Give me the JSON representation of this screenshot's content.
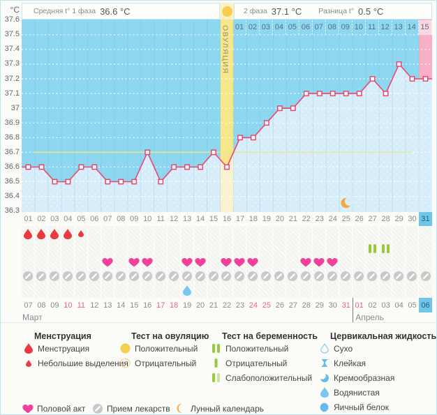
{
  "header": {
    "unit_label": "°C",
    "phase1_label": "Средняя t° 1 фаза",
    "phase1_value": "36.6 °C",
    "phase2_label": "2 фаза",
    "phase2_value": "37.1 °C",
    "diff_label": "Разница t°",
    "diff_value": "0.5 °C",
    "ovulation_test_result": "positive"
  },
  "chart_data": {
    "type": "line",
    "ylabel": "°C",
    "ylim": [
      36.3,
      37.6
    ],
    "ytick_step": 0.1,
    "yticks": [
      "37.6",
      "37.5",
      "37.4",
      "37.3",
      "37.2",
      "37.1",
      "37",
      "36.9",
      "36.8",
      "36.7",
      "36.6",
      "36.5",
      "36.4",
      "36.3"
    ],
    "x_days": [
      "01",
      "02",
      "03",
      "04",
      "05",
      "06",
      "07",
      "08",
      "09",
      "10",
      "11",
      "12",
      "13",
      "14",
      "15",
      "16",
      "17",
      "18",
      "19",
      "20",
      "21",
      "22",
      "23",
      "24",
      "25",
      "26",
      "27",
      "28",
      "29",
      "30",
      "31"
    ],
    "series": [
      {
        "name": "Базальная температура",
        "values": [
          36.6,
          36.6,
          36.5,
          36.5,
          36.6,
          36.6,
          36.5,
          36.5,
          36.5,
          36.7,
          36.5,
          36.6,
          36.6,
          36.6,
          36.7,
          36.6,
          36.8,
          36.8,
          36.9,
          37.0,
          37.0,
          37.1,
          37.1,
          37.1,
          37.1,
          37.1,
          37.2,
          37.1,
          37.3,
          37.2,
          37.2
        ]
      }
    ],
    "coverline": 36.7,
    "ovulation_day": 16,
    "ovulation_label": "ОВУЛЯЦИЯ",
    "phase2_days": [
      "01",
      "02",
      "03",
      "04",
      "05",
      "06",
      "07",
      "08",
      "09",
      "10",
      "11",
      "12",
      "13",
      "14",
      "15"
    ],
    "phase2_current_index": 14,
    "current_day": 31,
    "moon_day": 25,
    "grid": "dotted-white",
    "legend_position": "bottom"
  },
  "day_rows": {
    "menstruation_days": [
      1,
      2,
      3,
      4
    ],
    "menstruation_small_days": [
      5
    ],
    "pregnancy_test_positive_days": [
      27,
      28
    ],
    "intercourse_days": [
      7,
      9,
      10,
      13,
      14,
      16,
      17,
      18,
      22,
      23,
      24
    ],
    "medication_days": [
      1,
      2,
      3,
      4,
      5,
      6,
      7,
      8,
      9,
      10,
      11,
      12,
      13,
      14,
      15,
      16,
      17,
      18,
      19,
      20,
      21,
      22,
      23,
      24,
      25,
      26,
      27,
      28,
      29,
      30,
      31
    ],
    "cervical_watery_days": [
      13
    ]
  },
  "calendar": {
    "dates": [
      "07",
      "08",
      "09",
      "10",
      "11",
      "12",
      "13",
      "14",
      "15",
      "16",
      "17",
      "18",
      "19",
      "20",
      "21",
      "22",
      "23",
      "24",
      "25",
      "26",
      "27",
      "28",
      "29",
      "30",
      "31",
      "01",
      "02",
      "03",
      "04",
      "05",
      "06"
    ],
    "red_indices": [
      3,
      4,
      10,
      11,
      17,
      18,
      24,
      25
    ],
    "today_index": 30,
    "months": [
      {
        "label": "Март",
        "start_index": 0
      },
      {
        "label": "Апрель",
        "start_index": 25
      }
    ]
  },
  "legend": {
    "groups": [
      {
        "title": "Менструация",
        "items": [
          {
            "icon": "drop-red",
            "label": "Менструация"
          },
          {
            "icon": "drop-red-small",
            "label": "Небольшие выделения"
          }
        ]
      },
      {
        "title": "Тест на овуляцию",
        "items": [
          {
            "icon": "circle-yellow-filled",
            "label": "Положительный"
          },
          {
            "icon": "circle-yellow-outline",
            "label": "Отрицательный"
          }
        ]
      },
      {
        "title": "Тест на беременность",
        "items": [
          {
            "icon": "bars-green-two",
            "label": "Положительный"
          },
          {
            "icon": "bar-green-one",
            "label": "Отрицательный"
          },
          {
            "icon": "bars-green-weak",
            "label": "Слабоположительный"
          }
        ]
      },
      {
        "title": "Цервикальная жидкость",
        "items": [
          {
            "icon": "drop-outline-blue",
            "label": "Сухо"
          },
          {
            "icon": "sticky-blue",
            "label": "Клейкая"
          },
          {
            "icon": "creamy-blue",
            "label": "Кремообразная"
          },
          {
            "icon": "drop-blue",
            "label": "Водянистая"
          },
          {
            "icon": "circle-blue",
            "label": "Яичный белок"
          }
        ]
      }
    ],
    "bottom_items": [
      {
        "icon": "heart-pink",
        "label": "Половой акт"
      },
      {
        "icon": "pill-grey",
        "label": "Прием лекарств"
      },
      {
        "icon": "moon-orange",
        "label": "Лунный календарь"
      }
    ]
  },
  "colors": {
    "plot_bg": "#8ED7F0",
    "fill_below": "#D7EEFA",
    "fill_below_band": "#FAF2CC",
    "curve": "#E9476F",
    "coverline": "#EBE78C",
    "ovulation_band": "#F6E68C",
    "ovulation_band_header": "#FBF2C3",
    "ovulation_text": "#90906F",
    "current_column_pink": "#F8AFC8",
    "current_cell_pink": "#FBD7E3",
    "today_cell_blue": "#6EC6E8",
    "menstruation_red": "#E83A40",
    "heart_pink": "#F2419B",
    "pill_grey": "#C9C9C9",
    "test_green": "#97C93D",
    "test_green_light": "#CDE09A",
    "test_yellow": "#F7CE4F",
    "cervical_blue": "#64BAE8",
    "moon_orange": "#F5A840"
  }
}
